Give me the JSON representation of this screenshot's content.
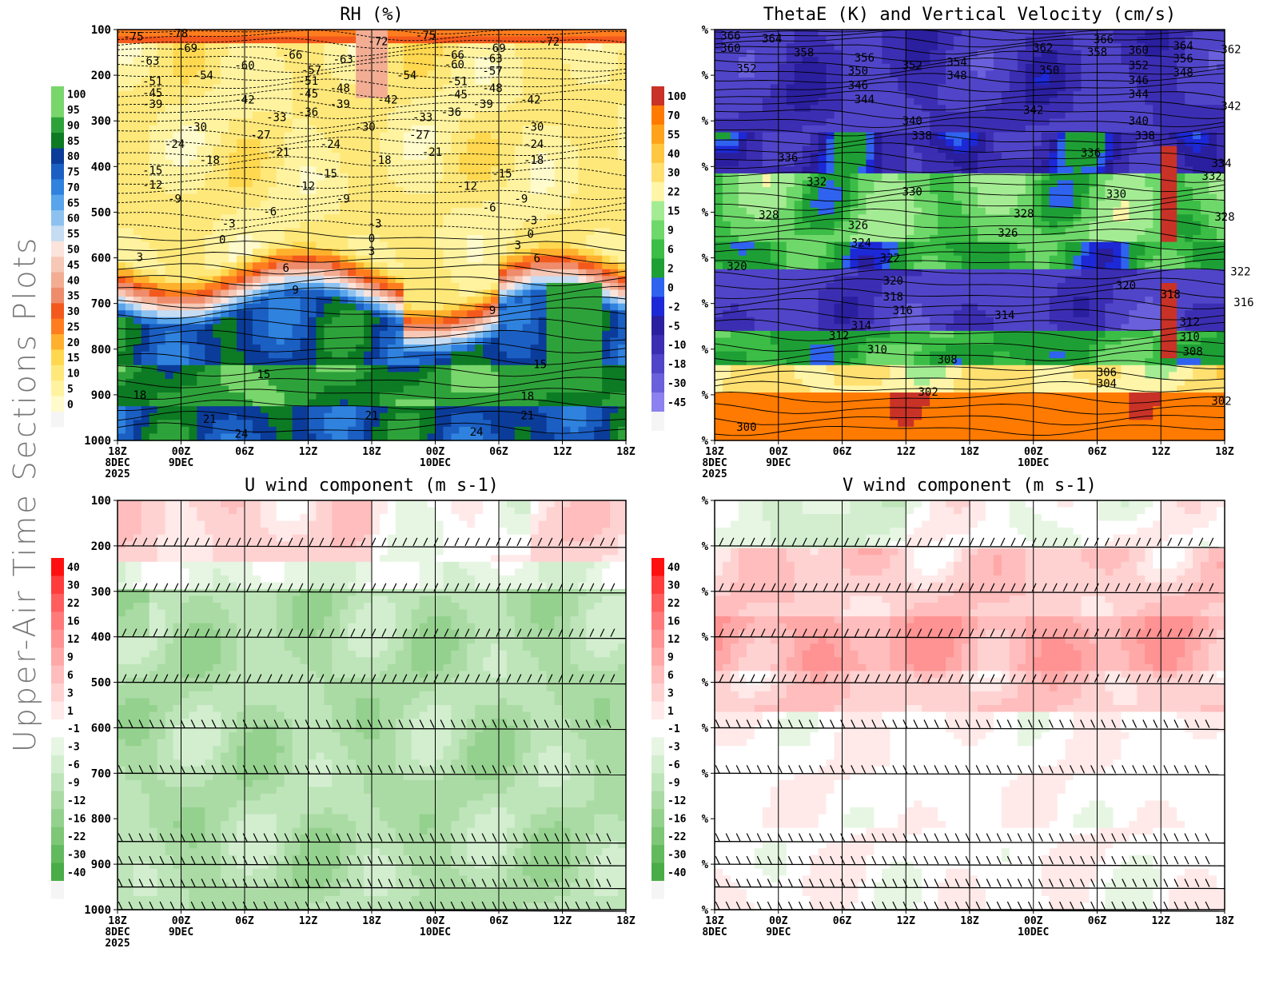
{
  "page": {
    "title": "Upper-Air Time Sections Plots"
  },
  "time_axis": {
    "ticks": [
      "18Z",
      "00Z",
      "06Z",
      "12Z",
      "18Z",
      "00Z",
      "06Z",
      "12Z",
      "18Z"
    ],
    "day_labels": [
      "8DEC",
      "9DEC",
      "10DEC"
    ],
    "year_label": "2025"
  },
  "colors": {
    "rh_scale": [
      "#f5f5f5",
      "#fffbcc",
      "#fff3a0",
      "#ffe87a",
      "#ffd84f",
      "#ffb12d",
      "#ff7d1e",
      "#f3591c",
      "#ee8c6c",
      "#f2ad93",
      "#f7c8b6",
      "#fbe4dc",
      "#c5dcf3",
      "#8dc2f0",
      "#58a5ec",
      "#2f82de",
      "#1b5fc3",
      "#0b3c99",
      "#0d7a24",
      "#2ea23a",
      "#79d66c"
    ],
    "thetae_scale": [
      "#f5f5f5",
      "#8c81ee",
      "#6a60db",
      "#5045c8",
      "#3c2eb3",
      "#2a1f9e",
      "#1d28d6",
      "#2f63ef",
      "#1e9f35",
      "#3bbd46",
      "#6fd86b",
      "#a4ec93",
      "#fff5a8",
      "#ffe070",
      "#ffc640",
      "#ffa31a",
      "#ff7a00",
      "#c83227",
      "#a51f1f"
    ],
    "wind_scale": [
      "#2e9b2e",
      "#4aac46",
      "#63ba5e",
      "#7dc777",
      "#94d18e",
      "#aadba4",
      "#bee5b9",
      "#d2eecf",
      "#e6f6e3",
      "#ffffff",
      "#ffe9e9",
      "#ffd2d2",
      "#ffbdbd",
      "#ffa8a8",
      "#ff9292",
      "#ff7a7a",
      "#ff5e5e",
      "#ff3c3c",
      "#ff1010"
    ]
  },
  "chart_data": [
    {
      "type": "heatmap",
      "title": "RH (%)",
      "y_ticks": [
        "100",
        "200",
        "300",
        "400",
        "500",
        "600",
        "700",
        "800",
        "900",
        "1000"
      ],
      "colorbar_labels": [
        "100",
        "95",
        "90",
        "85",
        "80",
        "75",
        "70",
        "65",
        "60",
        "55",
        "50",
        "45",
        "40",
        "35",
        "30",
        "25",
        "20",
        "15",
        "10",
        "5",
        "0"
      ],
      "colorbar_levels": [
        100,
        95,
        90,
        85,
        80,
        75,
        70,
        65,
        60,
        55,
        50,
        45,
        40,
        35,
        30,
        25,
        20,
        15,
        10,
        5,
        0
      ],
      "contour_variable": "temperature",
      "contour_labels": [
        {
          "text": "-75",
          "x": 0.5,
          "p": 115
        },
        {
          "text": "-78",
          "x": 1.9,
          "p": 108
        },
        {
          "text": "-69",
          "x": 2.2,
          "p": 140
        },
        {
          "text": "-72",
          "x": 8.2,
          "p": 125
        },
        {
          "text": "-75",
          "x": 9.7,
          "p": 112
        },
        {
          "text": "-69",
          "x": 11.9,
          "p": 140
        },
        {
          "text": "-72",
          "x": 13.6,
          "p": 126
        },
        {
          "text": "-63",
          "x": 1.0,
          "p": 168
        },
        {
          "text": "-60",
          "x": 4.0,
          "p": 178
        },
        {
          "text": "-66",
          "x": 5.5,
          "p": 155
        },
        {
          "text": "-63",
          "x": 7.1,
          "p": 165
        },
        {
          "text": "-66",
          "x": 10.6,
          "p": 155
        },
        {
          "text": "-63",
          "x": 11.8,
          "p": 163
        },
        {
          "text": "-60",
          "x": 10.6,
          "p": 176
        },
        {
          "text": "-57",
          "x": 6.1,
          "p": 188
        },
        {
          "text": "-57",
          "x": 11.8,
          "p": 190
        },
        {
          "text": "-54",
          "x": 2.7,
          "p": 200
        },
        {
          "text": "-54",
          "x": 9.1,
          "p": 200
        },
        {
          "text": "-51",
          "x": 1.1,
          "p": 213
        },
        {
          "text": "-51",
          "x": 6.0,
          "p": 212
        },
        {
          "text": "-51",
          "x": 10.7,
          "p": 213
        },
        {
          "text": "-48",
          "x": 7.0,
          "p": 228
        },
        {
          "text": "-48",
          "x": 11.8,
          "p": 228
        },
        {
          "text": "-45",
          "x": 1.1,
          "p": 238
        },
        {
          "text": "-45",
          "x": 6.0,
          "p": 240
        },
        {
          "text": "-45",
          "x": 10.7,
          "p": 242
        },
        {
          "text": "-42",
          "x": 4.0,
          "p": 253
        },
        {
          "text": "-42",
          "x": 8.5,
          "p": 253
        },
        {
          "text": "-42",
          "x": 13.0,
          "p": 253
        },
        {
          "text": "-39",
          "x": 1.1,
          "p": 263
        },
        {
          "text": "-39",
          "x": 7.0,
          "p": 263
        },
        {
          "text": "-39",
          "x": 11.5,
          "p": 263
        },
        {
          "text": "-36",
          "x": 6.0,
          "p": 280
        },
        {
          "text": "-36",
          "x": 10.5,
          "p": 280
        },
        {
          "text": "-33",
          "x": 5.0,
          "p": 292
        },
        {
          "text": "-33",
          "x": 9.6,
          "p": 292
        },
        {
          "text": "-30",
          "x": 2.5,
          "p": 313
        },
        {
          "text": "-30",
          "x": 7.8,
          "p": 313
        },
        {
          "text": "-30",
          "x": 13.1,
          "p": 313
        },
        {
          "text": "-27",
          "x": 4.5,
          "p": 330
        },
        {
          "text": "-27",
          "x": 9.5,
          "p": 330
        },
        {
          "text": "-24",
          "x": 1.8,
          "p": 350
        },
        {
          "text": "-24",
          "x": 6.7,
          "p": 350
        },
        {
          "text": "-24",
          "x": 13.1,
          "p": 350
        },
        {
          "text": "-21",
          "x": 5.1,
          "p": 368
        },
        {
          "text": "-21",
          "x": 9.9,
          "p": 368
        },
        {
          "text": "-18",
          "x": 2.9,
          "p": 385
        },
        {
          "text": "-18",
          "x": 8.3,
          "p": 385
        },
        {
          "text": "-18",
          "x": 13.1,
          "p": 385
        },
        {
          "text": "-15",
          "x": 1.1,
          "p": 408
        },
        {
          "text": "-15",
          "x": 6.6,
          "p": 415
        },
        {
          "text": "-15",
          "x": 12.1,
          "p": 415
        },
        {
          "text": "-12",
          "x": 1.1,
          "p": 440
        },
        {
          "text": "-12",
          "x": 5.9,
          "p": 442
        },
        {
          "text": "-12",
          "x": 11.0,
          "p": 442
        },
        {
          "text": "-9",
          "x": 1.8,
          "p": 470
        },
        {
          "text": "-9",
          "x": 7.1,
          "p": 470
        },
        {
          "text": "-9",
          "x": 12.7,
          "p": 470
        },
        {
          "text": "-6",
          "x": 4.8,
          "p": 498
        },
        {
          "text": "-6",
          "x": 11.7,
          "p": 490
        },
        {
          "text": "-3",
          "x": 3.5,
          "p": 525
        },
        {
          "text": "-3",
          "x": 8.1,
          "p": 525
        },
        {
          "text": "-3",
          "x": 13.0,
          "p": 518
        },
        {
          "text": "0",
          "x": 3.3,
          "p": 560
        },
        {
          "text": "0",
          "x": 8.0,
          "p": 557
        },
        {
          "text": "0",
          "x": 13.0,
          "p": 547
        },
        {
          "text": "3",
          "x": 0.7,
          "p": 598
        },
        {
          "text": "3",
          "x": 8.0,
          "p": 585
        },
        {
          "text": "3",
          "x": 12.6,
          "p": 572
        },
        {
          "text": "6",
          "x": 5.3,
          "p": 622
        },
        {
          "text": "6",
          "x": 13.2,
          "p": 601
        },
        {
          "text": "9",
          "x": 5.6,
          "p": 670
        },
        {
          "text": "9",
          "x": 11.8,
          "p": 715
        },
        {
          "text": "15",
          "x": 4.6,
          "p": 855
        },
        {
          "text": "15",
          "x": 13.3,
          "p": 833
        },
        {
          "text": "18",
          "x": 0.7,
          "p": 900
        },
        {
          "text": "18",
          "x": 12.9,
          "p": 903
        },
        {
          "text": "21",
          "x": 2.9,
          "p": 953
        },
        {
          "text": "21",
          "x": 8.0,
          "p": 945
        },
        {
          "text": "21",
          "x": 12.9,
          "p": 945
        },
        {
          "text": "24",
          "x": 3.9,
          "p": 985
        },
        {
          "text": "24",
          "x": 11.3,
          "p": 981
        }
      ]
    },
    {
      "type": "heatmap",
      "title": "ThetaE (K) and Vertical Velocity (cm/s)",
      "y_ticks": [
        "%",
        "%",
        "%",
        "%",
        "%",
        "%",
        "%",
        "%",
        "%",
        "%"
      ],
      "colorbar_labels": [
        "100",
        "70",
        "55",
        "40",
        "30",
        "22",
        "15",
        "9",
        "6",
        "2",
        "0",
        "-2",
        "-5",
        "-10",
        "-18",
        "-30",
        "-45"
      ],
      "colorbar_levels": [
        100,
        70,
        55,
        40,
        30,
        22,
        15,
        9,
        6,
        2,
        0,
        -2,
        -5,
        -10,
        -18,
        -30,
        -45
      ],
      "contour_variable": "thetae",
      "contour_labels": [
        {
          "text": "366",
          "x": 0.5,
          "p": 113
        },
        {
          "text": "364",
          "x": 1.8,
          "p": 119
        },
        {
          "text": "360",
          "x": 0.5,
          "p": 140
        },
        {
          "text": "358",
          "x": 2.8,
          "p": 150
        },
        {
          "text": "352",
          "x": 1.0,
          "p": 185
        },
        {
          "text": "356",
          "x": 4.7,
          "p": 161
        },
        {
          "text": "350",
          "x": 4.5,
          "p": 190
        },
        {
          "text": "346",
          "x": 4.5,
          "p": 222
        },
        {
          "text": "344",
          "x": 4.7,
          "p": 252
        },
        {
          "text": "352",
          "x": 6.2,
          "p": 178
        },
        {
          "text": "354",
          "x": 7.6,
          "p": 171
        },
        {
          "text": "348",
          "x": 7.6,
          "p": 200
        },
        {
          "text": "350",
          "x": 10.5,
          "p": 188
        },
        {
          "text": "362",
          "x": 10.3,
          "p": 139
        },
        {
          "text": "366",
          "x": 12.2,
          "p": 121
        },
        {
          "text": "358",
          "x": 12.0,
          "p": 149
        },
        {
          "text": "360",
          "x": 13.3,
          "p": 145
        },
        {
          "text": "364",
          "x": 14.7,
          "p": 135
        },
        {
          "text": "362",
          "x": 16.2,
          "p": 143
        },
        {
          "text": "352",
          "x": 13.3,
          "p": 178
        },
        {
          "text": "356",
          "x": 14.7,
          "p": 163
        },
        {
          "text": "346",
          "x": 13.3,
          "p": 210
        },
        {
          "text": "348",
          "x": 14.7,
          "p": 194
        },
        {
          "text": "344",
          "x": 13.3,
          "p": 241
        },
        {
          "text": "342",
          "x": 10.0,
          "p": 276
        },
        {
          "text": "342",
          "x": 16.2,
          "p": 267
        },
        {
          "text": "340",
          "x": 6.2,
          "p": 300
        },
        {
          "text": "338",
          "x": 6.5,
          "p": 332
        },
        {
          "text": "340",
          "x": 13.3,
          "p": 300
        },
        {
          "text": "338",
          "x": 13.5,
          "p": 332
        },
        {
          "text": "336",
          "x": 2.3,
          "p": 380
        },
        {
          "text": "336",
          "x": 11.8,
          "p": 370
        },
        {
          "text": "334",
          "x": 15.9,
          "p": 392
        },
        {
          "text": "332",
          "x": 3.2,
          "p": 433
        },
        {
          "text": "332",
          "x": 15.6,
          "p": 420
        },
        {
          "text": "330",
          "x": 6.2,
          "p": 455
        },
        {
          "text": "330",
          "x": 12.6,
          "p": 460
        },
        {
          "text": "328",
          "x": 1.7,
          "p": 505
        },
        {
          "text": "328",
          "x": 9.7,
          "p": 503
        },
        {
          "text": "328",
          "x": 16.0,
          "p": 510
        },
        {
          "text": "326",
          "x": 4.5,
          "p": 528
        },
        {
          "text": "326",
          "x": 9.2,
          "p": 545
        },
        {
          "text": "324",
          "x": 4.6,
          "p": 567
        },
        {
          "text": "322",
          "x": 5.5,
          "p": 600
        },
        {
          "text": "322",
          "x": 16.5,
          "p": 630
        },
        {
          "text": "320",
          "x": 0.7,
          "p": 618
        },
        {
          "text": "320",
          "x": 5.6,
          "p": 650
        },
        {
          "text": "320",
          "x": 12.9,
          "p": 660
        },
        {
          "text": "318",
          "x": 5.6,
          "p": 685
        },
        {
          "text": "318",
          "x": 14.3,
          "p": 680
        },
        {
          "text": "316",
          "x": 5.9,
          "p": 715
        },
        {
          "text": "316",
          "x": 16.6,
          "p": 697
        },
        {
          "text": "314",
          "x": 4.6,
          "p": 748
        },
        {
          "text": "314",
          "x": 9.1,
          "p": 725
        },
        {
          "text": "312",
          "x": 3.9,
          "p": 770
        },
        {
          "text": "312",
          "x": 14.9,
          "p": 740
        },
        {
          "text": "310",
          "x": 5.1,
          "p": 800
        },
        {
          "text": "310",
          "x": 14.9,
          "p": 772
        },
        {
          "text": "308",
          "x": 7.3,
          "p": 822
        },
        {
          "text": "308",
          "x": 15.0,
          "p": 805
        },
        {
          "text": "306",
          "x": 12.3,
          "p": 850
        },
        {
          "text": "304",
          "x": 12.3,
          "p": 875
        },
        {
          "text": "302",
          "x": 6.7,
          "p": 893
        },
        {
          "text": "302",
          "x": 15.9,
          "p": 913
        },
        {
          "text": "300",
          "x": 1.0,
          "p": 970
        }
      ]
    },
    {
      "type": "heatmap",
      "title": "U wind component (m s-1)",
      "y_ticks": [
        "100",
        "200",
        "300",
        "400",
        "500",
        "600",
        "700",
        "800",
        "900",
        "1000"
      ],
      "colorbar_labels": [
        "40",
        "30",
        "22",
        "16",
        "12",
        "9",
        "6",
        "3",
        "1",
        "-1",
        "-3",
        "-6",
        "-9",
        "-12",
        "-16",
        "-22",
        "-30",
        "-40"
      ],
      "colorbar_levels": [
        40,
        30,
        22,
        16,
        12,
        9,
        6,
        3,
        1,
        -1,
        -3,
        -6,
        -9,
        -12,
        -16,
        -22,
        -30,
        -40
      ],
      "wind_barb_levels": [
        200,
        300,
        400,
        500,
        600,
        700,
        850,
        900,
        950,
        1000
      ]
    },
    {
      "type": "heatmap",
      "title": "V wind component (m s-1)",
      "y_ticks": [
        "%",
        "%",
        "%",
        "%",
        "%",
        "%",
        "%",
        "%",
        "%",
        "%"
      ],
      "colorbar_labels": [
        "40",
        "30",
        "22",
        "16",
        "12",
        "9",
        "6",
        "3",
        "1",
        "-1",
        "-3",
        "-6",
        "-9",
        "-12",
        "-16",
        "-22",
        "-30",
        "-40"
      ],
      "colorbar_levels": [
        40,
        30,
        22,
        16,
        12,
        9,
        6,
        3,
        1,
        -1,
        -3,
        -6,
        -9,
        -12,
        -16,
        -22,
        -30,
        -40
      ],
      "wind_barb_levels": [
        200,
        300,
        400,
        500,
        600,
        700,
        850,
        900,
        950,
        1000
      ]
    }
  ]
}
